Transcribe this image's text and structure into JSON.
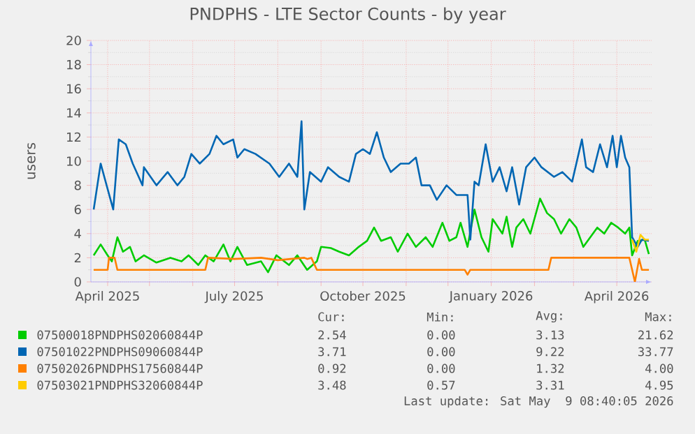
{
  "chart_data": {
    "type": "line",
    "title": "PNDPHS - LTE Sector Counts - by year",
    "ylabel": "users",
    "xlim": [
      "2025-03-20",
      "2026-04-26"
    ],
    "ylim": [
      0,
      20
    ],
    "yticks": [
      0,
      2,
      4,
      6,
      8,
      10,
      12,
      14,
      16,
      18,
      20
    ],
    "xticks": [
      {
        "value": "2025-04-01",
        "label": "April 2025"
      },
      {
        "value": "2025-05-01",
        "label": null
      },
      {
        "value": "2025-06-01",
        "label": null
      },
      {
        "value": "2025-07-01",
        "label": "July 2025"
      },
      {
        "value": "2025-08-01",
        "label": null
      },
      {
        "value": "2025-09-01",
        "label": null
      },
      {
        "value": "2025-10-01",
        "label": "October 2025"
      },
      {
        "value": "2025-11-01",
        "label": null
      },
      {
        "value": "2025-12-01",
        "label": null
      },
      {
        "value": "2026-01-01",
        "label": "January 2026"
      },
      {
        "value": "2026-02-01",
        "label": null
      },
      {
        "value": "2026-03-01",
        "label": null
      },
      {
        "value": "2026-04-01",
        "label": "April 2026"
      }
    ],
    "grid": true,
    "legend": "bottom",
    "series": [
      {
        "name": "07500018PNDPHS02060844P",
        "color": "#00cc00",
        "x": [
          "2025-03-22",
          "2025-03-27",
          "2025-04-01",
          "2025-04-04",
          "2025-04-08",
          "2025-04-12",
          "2025-04-17",
          "2025-04-21",
          "2025-04-27",
          "2025-05-06",
          "2025-05-16",
          "2025-05-24",
          "2025-05-29",
          "2025-06-05",
          "2025-06-10",
          "2025-06-16",
          "2025-06-23",
          "2025-06-28",
          "2025-07-03",
          "2025-07-10",
          "2025-07-20",
          "2025-07-25",
          "2025-07-31",
          "2025-08-09",
          "2025-08-15",
          "2025-08-22",
          "2025-08-29",
          "2025-09-01",
          "2025-09-08",
          "2025-09-14",
          "2025-09-21",
          "2025-09-28",
          "2025-10-04",
          "2025-10-09",
          "2025-10-14",
          "2025-10-21",
          "2025-10-26",
          "2025-11-02",
          "2025-11-08",
          "2025-11-15",
          "2025-11-20",
          "2025-11-27",
          "2025-12-02",
          "2025-12-07",
          "2025-12-10",
          "2025-12-15",
          "2025-12-20",
          "2025-12-25",
          "2025-12-30",
          "2026-01-02",
          "2026-01-09",
          "2026-01-12",
          "2026-01-16",
          "2026-01-19",
          "2026-01-24",
          "2026-01-29",
          "2026-02-05",
          "2026-02-10",
          "2026-02-15",
          "2026-02-20",
          "2026-02-26",
          "2026-03-03",
          "2026-03-08",
          "2026-03-13",
          "2026-03-18",
          "2026-03-23",
          "2026-03-28",
          "2026-04-02",
          "2026-04-07",
          "2026-04-10",
          "2026-04-12",
          "2026-04-16",
          "2026-04-21",
          "2026-04-24"
        ],
        "values": [
          2.2,
          3.1,
          2.2,
          1.7,
          3.7,
          2.5,
          2.9,
          1.7,
          2.2,
          1.6,
          2.0,
          1.7,
          2.2,
          1.4,
          2.2,
          1.7,
          3.1,
          1.7,
          2.9,
          1.4,
          1.7,
          0.8,
          2.2,
          1.4,
          2.2,
          1.0,
          1.7,
          2.9,
          2.8,
          2.5,
          2.2,
          2.9,
          3.4,
          4.5,
          3.4,
          3.7,
          2.5,
          4.0,
          2.9,
          3.7,
          2.9,
          4.9,
          3.4,
          3.7,
          4.9,
          2.9,
          6.0,
          3.7,
          2.5,
          5.2,
          4.0,
          5.4,
          2.9,
          4.5,
          5.2,
          4.0,
          6.9,
          5.7,
          5.2,
          4.0,
          5.2,
          4.5,
          2.9,
          3.7,
          4.5,
          4.0,
          4.9,
          4.5,
          4.0,
          4.5,
          2.2,
          3.4,
          3.5,
          2.3
        ]
      },
      {
        "name": "07501022PNDPHS09060844P",
        "color": "#0066b3",
        "x": [
          "2025-03-22",
          "2025-03-27",
          "2025-04-05",
          "2025-04-09",
          "2025-04-14",
          "2025-04-19",
          "2025-04-26",
          "2025-04-27",
          "2025-05-06",
          "2025-05-14",
          "2025-05-21",
          "2025-05-26",
          "2025-05-31",
          "2025-06-06",
          "2025-06-13",
          "2025-06-18",
          "2025-06-23",
          "2025-06-30",
          "2025-07-03",
          "2025-07-08",
          "2025-07-16",
          "2025-07-26",
          "2025-08-02",
          "2025-08-09",
          "2025-08-15",
          "2025-08-18",
          "2025-08-20",
          "2025-08-24",
          "2025-09-01",
          "2025-09-06",
          "2025-09-14",
          "2025-09-21",
          "2025-09-26",
          "2025-10-01",
          "2025-10-06",
          "2025-10-11",
          "2025-10-16",
          "2025-10-21",
          "2025-10-28",
          "2025-11-03",
          "2025-11-08",
          "2025-11-12",
          "2025-11-18",
          "2025-11-23",
          "2025-11-30",
          "2025-12-07",
          "2025-12-15",
          "2025-12-17",
          "2025-12-20",
          "2025-12-23",
          "2025-12-28",
          "2026-01-02",
          "2026-01-07",
          "2026-01-12",
          "2026-01-16",
          "2026-01-21",
          "2026-01-26",
          "2026-02-01",
          "2026-02-06",
          "2026-02-15",
          "2026-02-21",
          "2026-02-28",
          "2026-03-07",
          "2026-03-10",
          "2026-03-15",
          "2026-03-20",
          "2026-03-25",
          "2026-03-29",
          "2026-04-01",
          "2026-04-04",
          "2026-04-07",
          "2026-04-10",
          "2026-04-12",
          "2026-04-16",
          "2026-04-19",
          "2026-04-24"
        ],
        "values": [
          6.0,
          9.8,
          6.0,
          11.8,
          11.4,
          9.8,
          8.0,
          9.5,
          8.0,
          9.1,
          8.0,
          8.7,
          10.6,
          9.8,
          10.6,
          12.1,
          11.4,
          11.8,
          10.3,
          11.0,
          10.6,
          9.8,
          8.7,
          9.8,
          8.7,
          13.3,
          6.0,
          9.1,
          8.3,
          9.5,
          8.7,
          8.3,
          10.6,
          11.0,
          10.6,
          12.4,
          10.3,
          9.1,
          9.8,
          9.8,
          10.3,
          8.0,
          8.0,
          6.8,
          8.0,
          7.2,
          7.2,
          3.5,
          8.3,
          8.0,
          11.4,
          8.3,
          9.5,
          7.5,
          9.5,
          6.4,
          9.5,
          10.3,
          9.5,
          8.7,
          9.1,
          8.3,
          11.8,
          9.5,
          9.1,
          11.4,
          9.5,
          12.1,
          9.5,
          12.1,
          10.3,
          9.5,
          3.7,
          2.9,
          3.5,
          3.4
        ]
      },
      {
        "name": "07502026PNDPHS17560844P",
        "color": "#ff8000",
        "x": [
          "2025-03-22",
          "2025-04-01",
          "2025-04-02",
          "2025-04-06",
          "2025-04-08",
          "2025-06-10",
          "2025-06-12",
          "2025-07-01",
          "2025-07-20",
          "2025-08-01",
          "2025-08-20",
          "2025-08-22",
          "2025-08-25",
          "2025-08-29",
          "2025-12-13",
          "2025-12-15",
          "2025-12-17",
          "2026-02-11",
          "2026-02-13",
          "2026-04-10",
          "2026-04-12",
          "2026-04-14",
          "2026-04-17",
          "2026-04-19",
          "2026-04-24"
        ],
        "values": [
          1.0,
          1.0,
          2.0,
          2.0,
          1.0,
          1.0,
          2.0,
          1.9,
          2.0,
          1.8,
          2.0,
          1.9,
          2.0,
          1.0,
          1.0,
          0.6,
          1.0,
          1.0,
          2.0,
          2.0,
          1.0,
          0.0,
          1.9,
          1.0,
          1.0
        ]
      },
      {
        "name": "07503021PNDPHS32060844P",
        "color": "#ffcc00",
        "x": [
          "2026-04-12",
          "2026-04-15",
          "2026-04-18",
          "2026-04-21",
          "2026-04-24"
        ],
        "values": [
          3.5,
          2.5,
          3.9,
          3.5,
          3.5
        ]
      }
    ],
    "annotations": [
      "Cur:",
      "Min:",
      "Avg:",
      "Max:",
      "2.54",
      "0.00",
      "3.13",
      "21.62",
      "3.71",
      "0.00",
      "9.22",
      "33.77",
      "0.92",
      "0.00",
      "1.32",
      "4.00",
      "3.48",
      "0.57",
      "3.31",
      "4.95",
      "Last update: Sat May  9 08:40:05 2026"
    ]
  }
}
